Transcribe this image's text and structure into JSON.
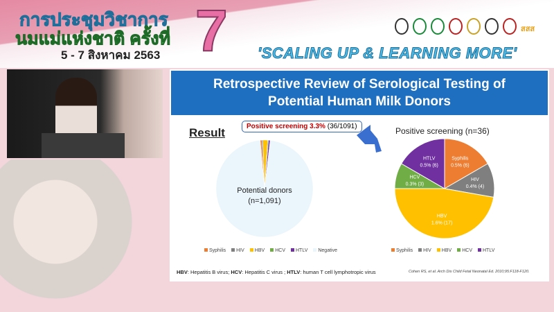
{
  "banner": {
    "thai_line1": "การประชุมวิชาการ",
    "thai_line2": "นมแม่แห่งชาติ ครั้งที่",
    "dates": "5 - 7 สิงหาคม 2563",
    "edition": "7",
    "slogan": "'SCALING UP & LEARNING MORE'",
    "logo_texts": [
      "สสส"
    ]
  },
  "slide": {
    "title_line1": "Retrospective Review of Serological Testing of",
    "title_line2": "Potential Human Milk Donors",
    "result_heading": "Result",
    "callout_bold": "Positive screening 3.3%",
    "callout_rest": "(36/1091)",
    "left_label1": "Potential donors",
    "left_label2": "(n=1,091)",
    "right_title": "Positive screening (n=36)",
    "footnote_parts": [
      "HBV",
      ": Hepatitis B virus; ",
      "HCV",
      ": Hepatitis C virus ; ",
      "HTLV",
      ": human T cell lymphotropic virus"
    ],
    "citation": "Cohen RS, et al. Arch Dis Child Fetal Neonatal Ed. 2010;95:F118-F120."
  },
  "chart_data": [
    {
      "type": "pie",
      "title": "",
      "categories": [
        "Syphilis",
        "HIV",
        "HBV",
        "HCV",
        "HTLV",
        "Negative"
      ],
      "values": [
        6,
        4,
        17,
        3,
        6,
        1055
      ],
      "colors": [
        "#ED7D31",
        "#7F7F7F",
        "#FFC000",
        "#70AD47",
        "#7030A0",
        "#EAF6FC"
      ],
      "legend": "bottom"
    },
    {
      "type": "pie",
      "title": "Positive screening (n=36)",
      "categories": [
        "Syphilis",
        "HIV",
        "HBV",
        "HCV",
        "HTLV"
      ],
      "values": [
        6,
        4,
        17,
        3,
        6
      ],
      "data_labels": [
        "0.5% (6)",
        "0.4% (4)",
        "1.6% (17)",
        "0.3% (3)",
        "0.5% (6)"
      ],
      "colors": [
        "#ED7D31",
        "#7F7F7F",
        "#FFC000",
        "#70AD47",
        "#7030A0"
      ],
      "legend": "bottom"
    }
  ]
}
